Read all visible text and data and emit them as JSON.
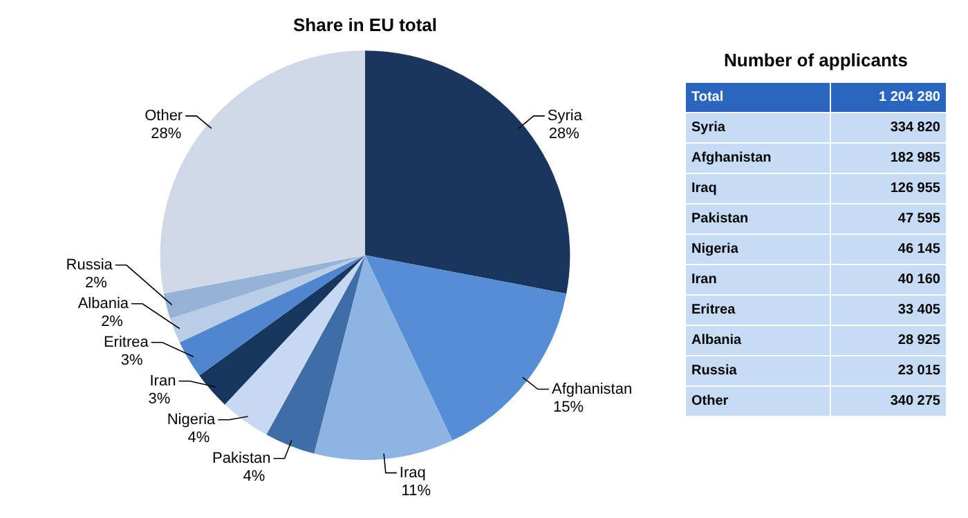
{
  "chart_data": [
    {
      "type": "pie",
      "title": "Share in EU total",
      "categories": [
        "Syria",
        "Afghanistan",
        "Iraq",
        "Pakistan",
        "Nigeria",
        "Iran",
        "Eritrea",
        "Albania",
        "Russia",
        "Other"
      ],
      "values": [
        28,
        15,
        11,
        4,
        4,
        3,
        3,
        2,
        2,
        28
      ],
      "value_labels": [
        "28%",
        "15%",
        "11%",
        "4%",
        "4%",
        "3%",
        "3%",
        "2%",
        "2%",
        "28%"
      ],
      "colors": [
        "#1b365d",
        "#558ed5",
        "#8eb4e3",
        "#3f6da5",
        "#c6d9f1",
        "#17375e",
        "#4f86cf",
        "#b9cde5",
        "#95b3d7",
        "#d0d8e8"
      ],
      "legend": false
    },
    {
      "type": "other",
      "title": "Number of applicants",
      "categories": [
        "Total",
        "Syria",
        "Afghanistan",
        "Iraq",
        "Pakistan",
        "Nigeria",
        "Iran",
        "Eritrea",
        "Albania",
        "Russia",
        "Other"
      ],
      "values": [
        1204280,
        334820,
        182985,
        126955,
        47595,
        46145,
        40160,
        33405,
        28925,
        23015,
        340275
      ],
      "value_labels": [
        "1 204 280",
        "334 820",
        "182 985",
        "126 955",
        "47 595",
        "46 145",
        "40 160",
        "33 405",
        "28 925",
        "23 015",
        "340 275"
      ]
    }
  ]
}
